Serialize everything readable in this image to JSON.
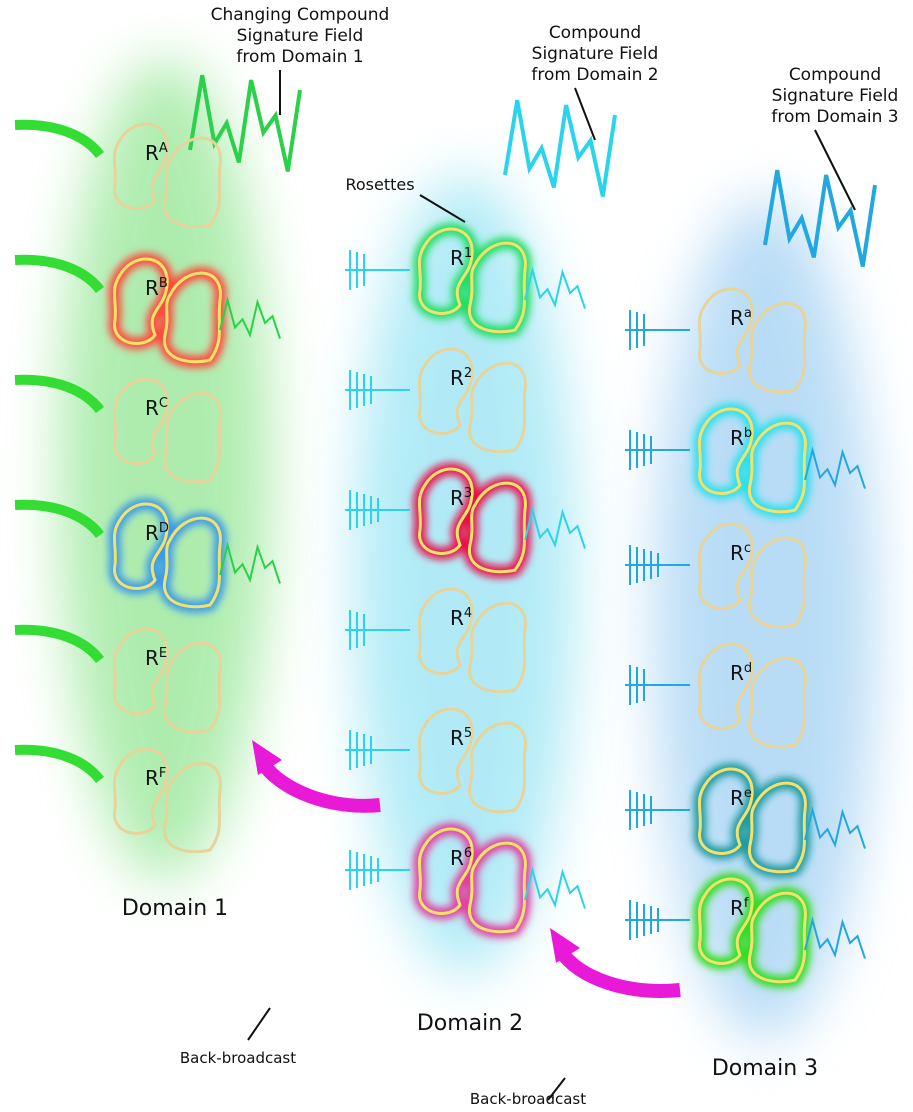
{
  "domains": [
    {
      "label": "Domain 1",
      "field_label": [
        "Changing Compound",
        "Signature Field",
        "from Domain 1"
      ],
      "rosettes": [
        {
          "base": "R",
          "sup": "A"
        },
        {
          "base": "R",
          "sup": "B"
        },
        {
          "base": "R",
          "sup": "C"
        },
        {
          "base": "R",
          "sup": "D"
        },
        {
          "base": "R",
          "sup": "E"
        },
        {
          "base": "R",
          "sup": "F"
        }
      ]
    },
    {
      "label": "Domain 2",
      "field_label": [
        "Compound",
        "Signature Field",
        "from Domain 2"
      ],
      "rosettes": [
        {
          "base": "R",
          "sup": "1"
        },
        {
          "base": "R",
          "sup": "2"
        },
        {
          "base": "R",
          "sup": "3"
        },
        {
          "base": "R",
          "sup": "4"
        },
        {
          "base": "R",
          "sup": "5"
        },
        {
          "base": "R",
          "sup": "6"
        }
      ]
    },
    {
      "label": "Domain 3",
      "field_label": [
        "Compound",
        "Signature Field",
        "from Domain 3"
      ],
      "rosettes": [
        {
          "base": "R",
          "sup": "a"
        },
        {
          "base": "R",
          "sup": "b"
        },
        {
          "base": "R",
          "sup": "c"
        },
        {
          "base": "R",
          "sup": "d"
        },
        {
          "base": "R",
          "sup": "e"
        },
        {
          "base": "R",
          "sup": "f"
        }
      ]
    }
  ],
  "rosettes_label": "Rosettes",
  "back_broadcast": [
    "Back-broadcast",
    "Back-broadcast"
  ]
}
